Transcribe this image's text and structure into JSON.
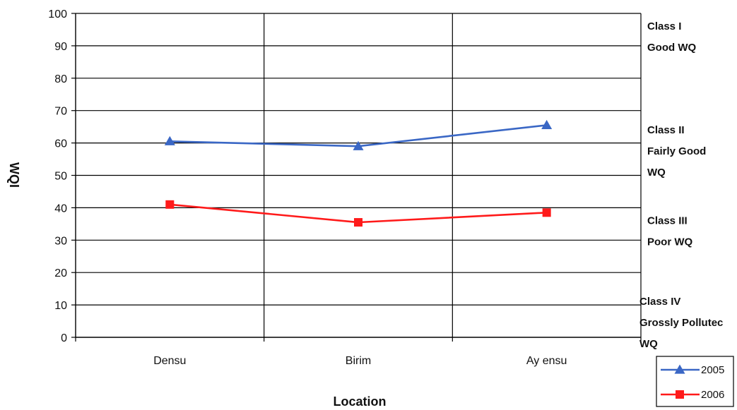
{
  "chart_data": {
    "type": "line",
    "title": "",
    "xlabel": "Location",
    "ylabel": "WQI",
    "ylim": [
      0,
      100
    ],
    "yticks": [
      0,
      10,
      20,
      30,
      40,
      50,
      60,
      70,
      80,
      90,
      100
    ],
    "categories": [
      "Densu",
      "Birim",
      "Ay ensu"
    ],
    "series": [
      {
        "name": "2005",
        "values": [
          60.5,
          59,
          65.5
        ],
        "color": "#3a67c5",
        "marker": "triangle"
      },
      {
        "name": "2006",
        "values": [
          41,
          35.5,
          38.5
        ],
        "color": "#ff1a1a",
        "marker": "square"
      }
    ],
    "grid": true,
    "legend": "bottom-right",
    "class_annotations": [
      {
        "y": 95,
        "lines": [
          "Class I",
          "Good WQ"
        ]
      },
      {
        "y": 63,
        "lines": [
          "Class II",
          "Fairly Good",
          "WQ"
        ]
      },
      {
        "y": 35,
        "lines": [
          "Class III",
          "Poor WQ"
        ]
      },
      {
        "y": 10,
        "lines": [
          "Class IV",
          "Grossly Pollutec",
          "WQ"
        ]
      }
    ]
  }
}
